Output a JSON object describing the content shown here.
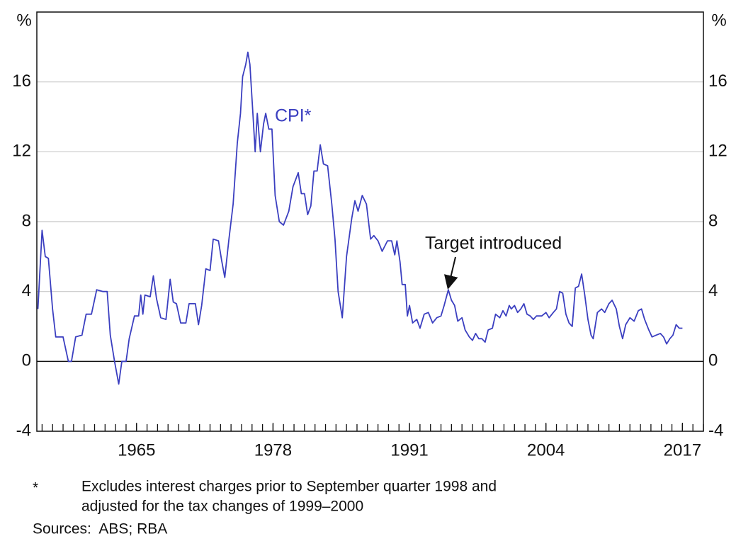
{
  "chart_data": {
    "type": "line",
    "y_unit_label": "%",
    "annotations": [
      "CPI*",
      "Target introduced"
    ],
    "footnote_marker": "*",
    "footnote": [
      "Excludes interest charges prior to September quarter 1998 and",
      "adjusted for the tax changes of 1999–2000"
    ],
    "source": "Sources:  ABS; RBA",
    "xlim": [
      1955.5,
      2019
    ],
    "xticks": [
      1965,
      1978,
      1991,
      2004,
      2017
    ],
    "ylim": [
      -4,
      20
    ],
    "yticks": [
      -4,
      0,
      4,
      8,
      12,
      16
    ],
    "grid": true,
    "x": [
      1955.6,
      1956.0,
      1956.3,
      1956.6,
      1957.0,
      1957.3,
      1958.0,
      1958.5,
      1958.8,
      1959.2,
      1959.8,
      1960.2,
      1960.7,
      1961.2,
      1961.8,
      1962.2,
      1962.5,
      1962.9,
      1963.3,
      1963.6,
      1964.0,
      1964.3,
      1964.8,
      1965.2,
      1965.4,
      1965.6,
      1965.8,
      1966.3,
      1966.6,
      1966.9,
      1967.3,
      1967.8,
      1968.2,
      1968.5,
      1968.8,
      1969.2,
      1969.7,
      1970.0,
      1970.6,
      1970.9,
      1971.2,
      1971.6,
      1972.0,
      1972.3,
      1972.8,
      1973.1,
      1973.4,
      1973.8,
      1974.2,
      1974.6,
      1974.9,
      1975.1,
      1975.4,
      1975.6,
      1975.8,
      1976.1,
      1976.3,
      1976.5,
      1976.8,
      1977.1,
      1977.3,
      1977.6,
      1977.9,
      1978.2,
      1978.6,
      1979.0,
      1979.5,
      1979.9,
      1980.4,
      1980.7,
      1981.0,
      1981.3,
      1981.6,
      1981.9,
      1982.2,
      1982.5,
      1982.8,
      1983.2,
      1983.6,
      1983.9,
      1984.2,
      1984.6,
      1985.0,
      1985.5,
      1985.8,
      1986.1,
      1986.5,
      1986.9,
      1987.3,
      1987.6,
      1988.0,
      1988.4,
      1988.9,
      1989.3,
      1989.6,
      1989.8,
      1990.1,
      1990.3,
      1990.6,
      1990.8,
      1991.0,
      1991.3,
      1991.7,
      1992.0,
      1992.4,
      1992.8,
      1993.2,
      1993.6,
      1994.0,
      1994.3,
      1994.7,
      1995.0,
      1995.3,
      1995.6,
      1996.0,
      1996.3,
      1996.7,
      1997.0,
      1997.3,
      1997.6,
      1997.9,
      1998.2,
      1998.5,
      1998.9,
      1999.2,
      1999.6,
      1999.9,
      2000.2,
      2000.5,
      2000.7,
      2001.0,
      2001.3,
      2001.6,
      2001.9,
      2002.2,
      2002.5,
      2002.8,
      2003.1,
      2003.6,
      2004.0,
      2004.3,
      2004.7,
      2005.0,
      2005.3,
      2005.6,
      2005.9,
      2006.2,
      2006.5,
      2006.8,
      2007.1,
      2007.4,
      2007.7,
      2008.0,
      2008.3,
      2008.5,
      2008.9,
      2009.3,
      2009.6,
      2010.0,
      2010.3,
      2010.7,
      2011.0,
      2011.3,
      2011.6,
      2012.0,
      2012.4,
      2012.8,
      2013.1,
      2013.4,
      2013.8,
      2014.1,
      2014.5,
      2014.9,
      2015.2,
      2015.5,
      2015.8,
      2016.1,
      2016.4,
      2016.7,
      2017.0
    ],
    "series": [
      {
        "name": "CPI*",
        "color": "#3b3fc0",
        "values": [
          3.0,
          7.5,
          6.0,
          5.9,
          3.0,
          1.4,
          1.4,
          0.0,
          0.0,
          1.4,
          1.5,
          2.7,
          2.7,
          4.1,
          4.0,
          4.0,
          1.5,
          0.0,
          -1.3,
          0.0,
          0.0,
          1.3,
          2.6,
          2.6,
          3.8,
          2.7,
          3.8,
          3.7,
          4.9,
          3.6,
          2.5,
          2.4,
          4.7,
          3.4,
          3.3,
          2.2,
          2.2,
          3.3,
          3.3,
          2.1,
          3.2,
          5.3,
          5.2,
          7.0,
          6.9,
          5.8,
          4.8,
          7.0,
          9.0,
          12.5,
          14.2,
          16.3,
          17.0,
          17.7,
          17.0,
          14.0,
          12.0,
          14.2,
          12.0,
          13.6,
          14.2,
          13.3,
          13.3,
          9.5,
          8.0,
          7.8,
          8.6,
          10.0,
          10.8,
          9.6,
          9.6,
          8.4,
          8.9,
          10.9,
          10.9,
          12.4,
          11.3,
          11.2,
          9.0,
          7.0,
          4.0,
          2.5,
          6.0,
          8.2,
          9.2,
          8.6,
          9.5,
          9.0,
          7.0,
          7.2,
          6.9,
          6.3,
          6.9,
          6.9,
          6.1,
          6.9,
          5.7,
          4.4,
          4.4,
          2.6,
          3.2,
          2.2,
          2.4,
          1.9,
          2.7,
          2.8,
          2.2,
          2.5,
          2.6,
          3.2,
          4.1,
          3.5,
          3.2,
          2.3,
          2.5,
          1.8,
          1.4,
          1.2,
          1.6,
          1.3,
          1.3,
          1.1,
          1.8,
          1.9,
          2.7,
          2.5,
          2.9,
          2.6,
          3.2,
          3.0,
          3.2,
          2.8,
          3.0,
          3.3,
          2.7,
          2.6,
          2.4,
          2.6,
          2.6,
          2.8,
          2.5,
          2.8,
          3.0,
          4.0,
          3.9,
          2.7,
          2.2,
          2.0,
          4.2,
          4.3,
          5.0,
          3.8,
          2.4,
          1.5,
          1.3,
          2.8,
          3.0,
          2.8,
          3.3,
          3.5,
          3.0,
          2.0,
          1.3,
          2.1,
          2.5,
          2.3,
          2.9,
          3.0,
          2.4,
          1.8,
          1.4,
          1.5,
          1.6,
          1.4,
          1.0,
          1.3,
          1.5,
          2.1,
          1.9,
          1.9
        ]
      }
    ]
  }
}
